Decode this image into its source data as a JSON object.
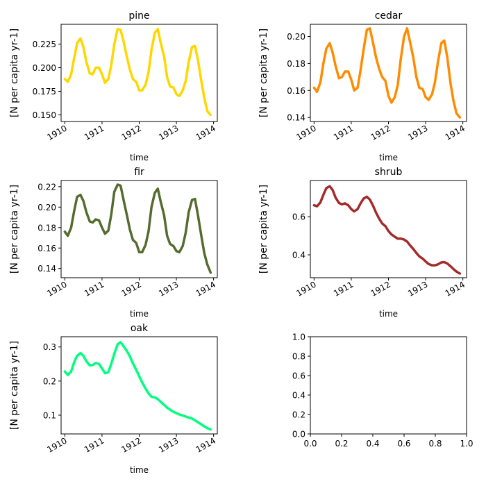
{
  "chart_data": [
    {
      "type": "line",
      "title": "pine",
      "xlabel": "time",
      "ylabel": "[N per capita yr-1]",
      "color": "#ffd700",
      "x_ticks": [
        "1910",
        "1911",
        "1912",
        "1913",
        "1914"
      ],
      "y_ticks": [
        "0.150",
        "0.175",
        "0.200",
        "0.225"
      ],
      "xlim": [
        1909.9,
        1914.1
      ],
      "ylim": [
        0.143,
        0.246
      ],
      "tick_positions": [
        1910,
        1911,
        1912,
        1913,
        1914
      ],
      "ytick_values": [
        0.15,
        0.175,
        0.2,
        0.225
      ],
      "x": [
        1910.0,
        1910.08,
        1910.17,
        1910.25,
        1910.33,
        1910.42,
        1910.5,
        1910.58,
        1910.67,
        1910.75,
        1910.83,
        1910.92,
        1911.0,
        1911.08,
        1911.17,
        1911.25,
        1911.33,
        1911.42,
        1911.5,
        1911.58,
        1911.67,
        1911.75,
        1911.83,
        1911.92,
        1912.0,
        1912.08,
        1912.17,
        1912.25,
        1912.33,
        1912.42,
        1912.5,
        1912.58,
        1912.67,
        1912.75,
        1912.83,
        1912.92,
        1913.0,
        1913.08,
        1913.17,
        1913.25,
        1913.33,
        1913.42,
        1913.5,
        1913.58,
        1913.67,
        1913.75,
        1913.83,
        1913.92
      ],
      "y": [
        0.188,
        0.185,
        0.193,
        0.21,
        0.226,
        0.231,
        0.222,
        0.206,
        0.194,
        0.193,
        0.2,
        0.2,
        0.193,
        0.184,
        0.188,
        0.203,
        0.225,
        0.241,
        0.24,
        0.228,
        0.211,
        0.198,
        0.188,
        0.185,
        0.176,
        0.176,
        0.182,
        0.195,
        0.219,
        0.237,
        0.241,
        0.226,
        0.212,
        0.19,
        0.18,
        0.179,
        0.172,
        0.17,
        0.176,
        0.186,
        0.206,
        0.222,
        0.223,
        0.208,
        0.186,
        0.168,
        0.154,
        0.15
      ]
    },
    {
      "type": "line",
      "title": "cedar",
      "xlabel": "time",
      "ylabel": "[N per capita yr-1]",
      "color": "#ff8c00",
      "x_ticks": [
        "1910",
        "1911",
        "1912",
        "1913",
        "1914"
      ],
      "y_ticks": [
        "0.14",
        "0.16",
        "0.18",
        "0.20"
      ],
      "xlim": [
        1909.9,
        1914.1
      ],
      "ylim": [
        0.137,
        0.209
      ],
      "tick_positions": [
        1910,
        1911,
        1912,
        1913,
        1914
      ],
      "ytick_values": [
        0.14,
        0.16,
        0.18,
        0.2
      ],
      "x": [
        1910.0,
        1910.08,
        1910.17,
        1910.25,
        1910.33,
        1910.42,
        1910.5,
        1910.58,
        1910.67,
        1910.75,
        1910.83,
        1910.92,
        1911.0,
        1911.08,
        1911.17,
        1911.25,
        1911.33,
        1911.42,
        1911.5,
        1911.58,
        1911.67,
        1911.75,
        1911.83,
        1911.92,
        1912.0,
        1912.08,
        1912.17,
        1912.25,
        1912.33,
        1912.42,
        1912.5,
        1912.58,
        1912.67,
        1912.75,
        1912.83,
        1912.92,
        1913.0,
        1913.08,
        1913.17,
        1913.25,
        1913.33,
        1913.42,
        1913.5,
        1913.58,
        1913.67,
        1913.75,
        1913.83,
        1913.92
      ],
      "y": [
        0.162,
        0.159,
        0.166,
        0.18,
        0.191,
        0.195,
        0.188,
        0.178,
        0.169,
        0.17,
        0.174,
        0.174,
        0.168,
        0.16,
        0.162,
        0.175,
        0.19,
        0.205,
        0.206,
        0.196,
        0.184,
        0.176,
        0.17,
        0.167,
        0.156,
        0.151,
        0.155,
        0.164,
        0.183,
        0.2,
        0.206,
        0.196,
        0.184,
        0.17,
        0.162,
        0.161,
        0.155,
        0.153,
        0.157,
        0.166,
        0.181,
        0.195,
        0.197,
        0.185,
        0.165,
        0.152,
        0.143,
        0.14
      ]
    },
    {
      "type": "line",
      "title": "fir",
      "xlabel": "time",
      "ylabel": "[N per capita yr-1]",
      "color": "#556b2f",
      "x_ticks": [
        "1910",
        "1911",
        "1912",
        "1913",
        "1914"
      ],
      "y_ticks": [
        "0.14",
        "0.16",
        "0.18",
        "0.20",
        "0.22"
      ],
      "xlim": [
        1909.9,
        1914.1
      ],
      "ylim": [
        0.131,
        0.226
      ],
      "tick_positions": [
        1910,
        1911,
        1912,
        1913,
        1914
      ],
      "ytick_values": [
        0.14,
        0.16,
        0.18,
        0.2,
        0.22
      ],
      "x": [
        1910.0,
        1910.08,
        1910.17,
        1910.25,
        1910.33,
        1910.42,
        1910.5,
        1910.58,
        1910.67,
        1910.75,
        1910.83,
        1910.92,
        1911.0,
        1911.08,
        1911.17,
        1911.25,
        1911.33,
        1911.42,
        1911.5,
        1911.58,
        1911.67,
        1911.75,
        1911.83,
        1911.92,
        1912.0,
        1912.08,
        1912.17,
        1912.25,
        1912.33,
        1912.42,
        1912.5,
        1912.58,
        1912.67,
        1912.75,
        1912.83,
        1912.92,
        1913.0,
        1913.08,
        1913.17,
        1913.25,
        1913.33,
        1913.42,
        1913.5,
        1913.58,
        1913.67,
        1913.75,
        1913.83,
        1913.92
      ],
      "y": [
        0.176,
        0.172,
        0.18,
        0.196,
        0.21,
        0.212,
        0.206,
        0.195,
        0.186,
        0.185,
        0.188,
        0.187,
        0.18,
        0.174,
        0.177,
        0.193,
        0.215,
        0.222,
        0.221,
        0.207,
        0.192,
        0.178,
        0.168,
        0.165,
        0.156,
        0.156,
        0.163,
        0.176,
        0.2,
        0.214,
        0.218,
        0.205,
        0.192,
        0.172,
        0.164,
        0.162,
        0.157,
        0.156,
        0.162,
        0.175,
        0.195,
        0.207,
        0.208,
        0.192,
        0.172,
        0.155,
        0.144,
        0.136
      ]
    },
    {
      "type": "line",
      "title": "shrub",
      "xlabel": "time",
      "ylabel": "[N per capita yr-1]",
      "color": "#a52a2a",
      "x_ticks": [
        "1910",
        "1911",
        "1912",
        "1913",
        "1914"
      ],
      "y_ticks": [
        "0.4",
        "0.6"
      ],
      "xlim": [
        1909.9,
        1914.1
      ],
      "ylim": [
        0.28,
        0.79
      ],
      "tick_positions": [
        1910,
        1911,
        1912,
        1913,
        1914
      ],
      "ytick_values": [
        0.4,
        0.6
      ],
      "x": [
        1910.0,
        1910.08,
        1910.17,
        1910.25,
        1910.33,
        1910.42,
        1910.5,
        1910.58,
        1910.67,
        1910.75,
        1910.83,
        1910.92,
        1911.0,
        1911.08,
        1911.17,
        1911.25,
        1911.33,
        1911.42,
        1911.5,
        1911.58,
        1911.67,
        1911.75,
        1911.83,
        1911.92,
        1912.0,
        1912.08,
        1912.17,
        1912.25,
        1912.33,
        1912.42,
        1912.5,
        1912.58,
        1912.67,
        1912.75,
        1912.83,
        1912.92,
        1913.0,
        1913.08,
        1913.17,
        1913.25,
        1913.33,
        1913.42,
        1913.5,
        1913.58,
        1913.67,
        1913.75,
        1913.83,
        1913.92
      ],
      "y": [
        0.66,
        0.655,
        0.675,
        0.715,
        0.75,
        0.76,
        0.74,
        0.7,
        0.672,
        0.665,
        0.67,
        0.66,
        0.64,
        0.628,
        0.64,
        0.67,
        0.695,
        0.705,
        0.69,
        0.66,
        0.62,
        0.59,
        0.565,
        0.55,
        0.525,
        0.507,
        0.495,
        0.485,
        0.485,
        0.48,
        0.47,
        0.45,
        0.43,
        0.41,
        0.392,
        0.38,
        0.365,
        0.352,
        0.345,
        0.345,
        0.35,
        0.36,
        0.362,
        0.355,
        0.34,
        0.325,
        0.312,
        0.302
      ]
    },
    {
      "type": "line",
      "title": "oak",
      "xlabel": "time",
      "ylabel": "[N per capita yr-1]",
      "color": "#00ff7f",
      "x_ticks": [
        "1910",
        "1911",
        "1912",
        "1913",
        "1914"
      ],
      "y_ticks": [
        "0.1",
        "0.2",
        "0.3"
      ],
      "xlim": [
        1909.9,
        1914.1
      ],
      "ylim": [
        0.045,
        0.33
      ],
      "tick_positions": [
        1910,
        1911,
        1912,
        1913,
        1914
      ],
      "ytick_values": [
        0.1,
        0.2,
        0.3
      ],
      "x": [
        1910.0,
        1910.08,
        1910.17,
        1910.25,
        1910.33,
        1910.42,
        1910.5,
        1910.58,
        1910.67,
        1910.75,
        1910.83,
        1910.92,
        1911.0,
        1911.08,
        1911.17,
        1911.25,
        1911.33,
        1911.42,
        1911.5,
        1911.58,
        1911.67,
        1911.75,
        1911.83,
        1911.92,
        1912.0,
        1912.08,
        1912.17,
        1912.25,
        1912.33,
        1912.42,
        1912.5,
        1912.58,
        1912.67,
        1912.75,
        1912.83,
        1912.92,
        1913.0,
        1913.08,
        1913.17,
        1913.25,
        1913.33,
        1913.42,
        1913.5,
        1913.58,
        1913.67,
        1913.75,
        1913.83,
        1913.92
      ],
      "y": [
        0.228,
        0.218,
        0.228,
        0.255,
        0.274,
        0.282,
        0.274,
        0.258,
        0.246,
        0.247,
        0.253,
        0.25,
        0.237,
        0.223,
        0.226,
        0.251,
        0.28,
        0.308,
        0.314,
        0.302,
        0.288,
        0.272,
        0.252,
        0.233,
        0.214,
        0.196,
        0.178,
        0.164,
        0.154,
        0.152,
        0.147,
        0.139,
        0.13,
        0.122,
        0.116,
        0.11,
        0.106,
        0.102,
        0.099,
        0.096,
        0.093,
        0.09,
        0.085,
        0.079,
        0.073,
        0.067,
        0.062,
        0.058
      ]
    },
    {
      "type": "line",
      "title": "",
      "xlabel": "",
      "ylabel": "",
      "color": "#000000",
      "empty": true,
      "x_ticks": [
        "0.0",
        "0.2",
        "0.4",
        "0.6",
        "0.8",
        "1.0"
      ],
      "y_ticks": [
        "0.0",
        "0.2",
        "0.4",
        "0.6",
        "0.8",
        "1.0"
      ],
      "xlim": [
        0,
        1
      ],
      "ylim": [
        0,
        1
      ],
      "tick_positions": [
        0,
        0.2,
        0.4,
        0.6,
        0.8,
        1.0
      ],
      "ytick_values": [
        0,
        0.2,
        0.4,
        0.6,
        0.8,
        1.0
      ],
      "x": [],
      "y": []
    }
  ]
}
